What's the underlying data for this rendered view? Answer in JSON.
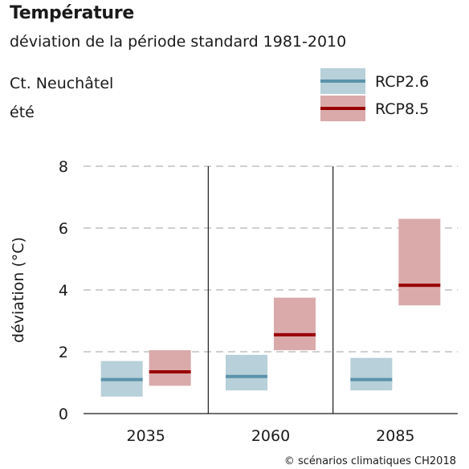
{
  "title": "Température",
  "subtitle": "déviation de la période standard 1981-2010",
  "region": "Ct. Neuchâtel",
  "season": "été",
  "credit": "© scénarios climatiques CH2018",
  "colors": {
    "rcp26_band": "#b7d0d9",
    "rcp26_line": "#5b93ab",
    "rcp85_band": "#daaaab",
    "rcp85_line": "#990000",
    "grid": "#b3b3b3"
  },
  "chart_data": {
    "type": "bar",
    "ylabel": "déviation (°C)",
    "ylim": [
      0,
      8
    ],
    "yticks": [
      0,
      2,
      4,
      6,
      8
    ],
    "grid": true,
    "legend_position": "top-right",
    "categories": [
      "2035",
      "2060",
      "2085"
    ],
    "series": [
      {
        "name": "RCP2.6",
        "low": [
          0.55,
          0.75,
          0.75
        ],
        "median": [
          1.1,
          1.2,
          1.1
        ],
        "high": [
          1.7,
          1.9,
          1.8
        ]
      },
      {
        "name": "RCP8.5",
        "low": [
          0.9,
          2.05,
          3.5
        ],
        "median": [
          1.35,
          2.55,
          4.15
        ],
        "high": [
          2.05,
          3.75,
          6.3
        ]
      }
    ]
  }
}
